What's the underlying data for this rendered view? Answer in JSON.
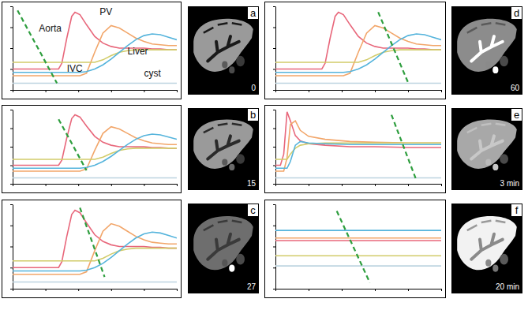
{
  "chart_data": [
    {
      "type": "line",
      "annotations": [
        "a",
        "0"
      ],
      "tick_labels": false,
      "grid": false,
      "x": [
        0,
        10,
        20,
        28,
        30,
        33,
        36,
        38,
        41,
        45,
        50,
        55,
        60,
        65,
        70,
        75,
        80,
        85,
        90,
        95,
        100
      ],
      "xlim": [
        0,
        100
      ],
      "ylim": [
        0,
        100
      ],
      "xticks": [
        0,
        20,
        40,
        60,
        80,
        100
      ],
      "yticks": [
        0,
        25,
        50,
        75,
        100
      ],
      "series": [
        {
          "name": "Aorta",
          "color": "#e8677b",
          "line_style": "solid",
          "values": [
            25,
            25,
            25,
            25,
            32,
            62,
            88,
            93,
            90,
            78,
            64,
            56,
            52,
            50,
            50,
            50,
            50,
            49,
            49,
            48,
            48
          ]
        },
        {
          "name": "PV",
          "color": "#f2a66a",
          "line_style": "solid",
          "values": [
            17,
            17,
            17,
            17,
            17,
            17,
            17,
            17,
            17,
            20,
            45,
            68,
            77,
            74,
            68,
            62,
            58,
            55,
            54,
            53,
            53
          ]
        },
        {
          "name": "IVC",
          "color": "#d2cc6a",
          "line_style": "solid",
          "values": [
            33,
            33,
            33,
            33,
            33,
            33,
            33,
            33,
            33,
            33,
            33,
            36,
            41,
            45,
            47,
            48,
            48,
            48,
            48,
            48,
            48
          ]
        },
        {
          "name": "Liver",
          "color": "#55b4dc",
          "line_style": "solid",
          "values": [
            21,
            21,
            21,
            21,
            21,
            21,
            21,
            21,
            21,
            22,
            25,
            30,
            37,
            45,
            53,
            60,
            65,
            67,
            66,
            63,
            60
          ]
        },
        {
          "name": "cyst",
          "color": "#bcd4e0",
          "line_style": "solid",
          "values": [
            8,
            8,
            8,
            8,
            8,
            8,
            8,
            8,
            8,
            8,
            8,
            8,
            8,
            8,
            8,
            8,
            8,
            8,
            8,
            8,
            8
          ]
        },
        {
          "color": "#2e9e3e",
          "line_style": "dashed",
          "x": [
            3,
            27
          ],
          "values": [
            95,
            8
          ]
        }
      ]
    },
    {
      "type": "line",
      "annotations": [
        "b",
        "15"
      ],
      "tick_labels": false,
      "grid": false,
      "x": [
        0,
        10,
        20,
        28,
        30,
        33,
        36,
        38,
        41,
        45,
        50,
        55,
        60,
        65,
        70,
        75,
        80,
        85,
        90,
        95,
        100
      ],
      "xlim": [
        0,
        100
      ],
      "ylim": [
        0,
        100
      ],
      "xticks": [
        0,
        20,
        40,
        60,
        80,
        100
      ],
      "yticks": [
        0,
        25,
        50,
        75,
        100
      ],
      "series": [
        {
          "color": "#e8677b",
          "line_style": "solid",
          "values": [
            25,
            25,
            25,
            25,
            32,
            62,
            88,
            93,
            90,
            78,
            64,
            56,
            52,
            50,
            50,
            50,
            50,
            49,
            49,
            48,
            48
          ]
        },
        {
          "color": "#f2a66a",
          "line_style": "solid",
          "values": [
            17,
            17,
            17,
            17,
            17,
            17,
            17,
            17,
            17,
            20,
            45,
            68,
            77,
            74,
            68,
            62,
            58,
            55,
            54,
            53,
            53
          ]
        },
        {
          "color": "#d2cc6a",
          "line_style": "solid",
          "values": [
            33,
            33,
            33,
            33,
            33,
            33,
            33,
            33,
            33,
            33,
            33,
            36,
            41,
            45,
            47,
            48,
            48,
            48,
            48,
            48,
            48
          ]
        },
        {
          "color": "#55b4dc",
          "line_style": "solid",
          "values": [
            21,
            21,
            21,
            21,
            21,
            21,
            21,
            21,
            21,
            22,
            25,
            30,
            37,
            45,
            53,
            60,
            65,
            67,
            66,
            63,
            60
          ]
        },
        {
          "color": "#bcd4e0",
          "line_style": "solid",
          "values": [
            8,
            8,
            8,
            8,
            8,
            8,
            8,
            8,
            8,
            8,
            8,
            8,
            8,
            8,
            8,
            8,
            8,
            8,
            8,
            8,
            8
          ]
        },
        {
          "color": "#2e9e3e",
          "line_style": "dashed",
          "x": [
            28,
            45
          ],
          "values": [
            87,
            18
          ]
        }
      ]
    },
    {
      "type": "line",
      "annotations": [
        "c",
        "27"
      ],
      "tick_labels": false,
      "grid": false,
      "x": [
        0,
        10,
        20,
        28,
        30,
        33,
        36,
        38,
        41,
        45,
        50,
        55,
        60,
        65,
        70,
        75,
        80,
        85,
        90,
        95,
        100
      ],
      "xlim": [
        0,
        100
      ],
      "ylim": [
        0,
        100
      ],
      "xticks": [
        0,
        20,
        40,
        60,
        80,
        100
      ],
      "yticks": [
        0,
        25,
        50,
        75,
        100
      ],
      "series": [
        {
          "color": "#e8677b",
          "line_style": "solid",
          "values": [
            25,
            25,
            25,
            25,
            32,
            62,
            88,
            93,
            90,
            78,
            64,
            56,
            52,
            50,
            50,
            50,
            50,
            49,
            49,
            48,
            48
          ]
        },
        {
          "color": "#f2a66a",
          "line_style": "solid",
          "values": [
            17,
            17,
            17,
            17,
            17,
            17,
            17,
            17,
            17,
            20,
            45,
            68,
            77,
            74,
            68,
            62,
            58,
            55,
            54,
            53,
            53
          ]
        },
        {
          "color": "#d2cc6a",
          "line_style": "solid",
          "values": [
            33,
            33,
            33,
            33,
            33,
            33,
            33,
            33,
            33,
            33,
            33,
            36,
            41,
            45,
            47,
            48,
            48,
            48,
            48,
            48,
            48
          ]
        },
        {
          "color": "#55b4dc",
          "line_style": "solid",
          "values": [
            21,
            21,
            21,
            21,
            21,
            21,
            21,
            21,
            21,
            22,
            25,
            30,
            37,
            45,
            53,
            60,
            65,
            67,
            66,
            63,
            60
          ]
        },
        {
          "color": "#bcd4e0",
          "line_style": "solid",
          "values": [
            8,
            8,
            8,
            8,
            8,
            8,
            8,
            8,
            8,
            8,
            8,
            8,
            8,
            8,
            8,
            8,
            8,
            8,
            8,
            8,
            8
          ]
        },
        {
          "color": "#2e9e3e",
          "line_style": "dashed",
          "x": [
            41,
            56
          ],
          "values": [
            96,
            14
          ]
        }
      ]
    },
    {
      "type": "line",
      "annotations": [
        "d",
        "60"
      ],
      "tick_labels": false,
      "grid": false,
      "x": [
        0,
        10,
        20,
        28,
        30,
        33,
        36,
        38,
        41,
        45,
        50,
        55,
        60,
        65,
        70,
        75,
        80,
        85,
        90,
        95,
        100
      ],
      "xlim": [
        0,
        100
      ],
      "ylim": [
        0,
        100
      ],
      "xticks": [
        0,
        20,
        40,
        60,
        80,
        100
      ],
      "yticks": [
        0,
        25,
        50,
        75,
        100
      ],
      "series": [
        {
          "color": "#e8677b",
          "line_style": "solid",
          "values": [
            25,
            25,
            25,
            25,
            32,
            62,
            88,
            93,
            90,
            78,
            64,
            56,
            52,
            50,
            50,
            50,
            50,
            49,
            49,
            48,
            48
          ]
        },
        {
          "color": "#f2a66a",
          "line_style": "solid",
          "values": [
            17,
            17,
            17,
            17,
            17,
            17,
            17,
            17,
            17,
            20,
            45,
            68,
            77,
            74,
            68,
            62,
            58,
            55,
            54,
            53,
            53
          ]
        },
        {
          "color": "#d2cc6a",
          "line_style": "solid",
          "values": [
            33,
            33,
            33,
            33,
            33,
            33,
            33,
            33,
            33,
            33,
            33,
            36,
            41,
            45,
            47,
            48,
            48,
            48,
            48,
            48,
            48
          ]
        },
        {
          "color": "#55b4dc",
          "line_style": "solid",
          "values": [
            21,
            21,
            21,
            21,
            21,
            21,
            21,
            21,
            21,
            22,
            25,
            30,
            37,
            45,
            53,
            60,
            65,
            67,
            66,
            63,
            60
          ]
        },
        {
          "color": "#bcd4e0",
          "line_style": "solid",
          "values": [
            8,
            8,
            8,
            8,
            8,
            8,
            8,
            8,
            8,
            8,
            8,
            8,
            8,
            8,
            8,
            8,
            8,
            8,
            8,
            8,
            8
          ]
        },
        {
          "color": "#2e9e3e",
          "line_style": "dashed",
          "x": [
            62,
            80
          ],
          "values": [
            93,
            9
          ]
        }
      ]
    },
    {
      "type": "line",
      "annotations": [
        "e",
        "3 min"
      ],
      "tick_labels": false,
      "grid": false,
      "x": [
        0,
        3,
        5,
        7,
        9,
        12,
        15,
        20,
        30,
        45,
        60,
        80,
        100
      ],
      "xlim": [
        0,
        100
      ],
      "ylim": [
        0,
        100
      ],
      "xticks": [
        0,
        20,
        40,
        60,
        80,
        100
      ],
      "yticks": [
        0,
        25,
        50,
        75,
        100
      ],
      "series": [
        {
          "color": "#e8677b",
          "line_style": "solid",
          "values": [
            25,
            25,
            40,
            97,
            85,
            65,
            58,
            54,
            52,
            50,
            50,
            49,
            49
          ]
        },
        {
          "color": "#f2a66a",
          "line_style": "solid",
          "values": [
            17,
            17,
            17,
            35,
            80,
            85,
            72,
            64,
            60,
            57,
            56,
            55,
            55
          ]
        },
        {
          "color": "#d2cc6a",
          "line_style": "solid",
          "values": [
            33,
            33,
            33,
            33,
            40,
            48,
            52,
            54,
            55,
            55,
            55,
            55,
            55
          ]
        },
        {
          "color": "#55b4dc",
          "line_style": "solid",
          "values": [
            21,
            21,
            21,
            21,
            30,
            52,
            57,
            55,
            54,
            53,
            53,
            53,
            53
          ]
        },
        {
          "color": "#bcd4e0",
          "line_style": "solid",
          "values": [
            8,
            8,
            8,
            8,
            8,
            8,
            8,
            8,
            8,
            8,
            8,
            8,
            8
          ]
        },
        {
          "color": "#2e9e3e",
          "line_style": "dashed",
          "x": [
            70,
            85
          ],
          "values": [
            93,
            5
          ]
        }
      ]
    },
    {
      "type": "line",
      "annotations": [
        "f",
        "20 min"
      ],
      "tick_labels": false,
      "grid": false,
      "x": [
        0,
        100
      ],
      "xlim": [
        0,
        100
      ],
      "ylim": [
        0,
        100
      ],
      "xticks": [
        0,
        20,
        40,
        60,
        80,
        100
      ],
      "yticks": [
        0,
        25,
        50,
        75,
        100
      ],
      "series": [
        {
          "color": "#e8677b",
          "line_style": "solid",
          "values": [
            57,
            57
          ]
        },
        {
          "color": "#f2a66a",
          "line_style": "solid",
          "values": [
            60,
            60
          ]
        },
        {
          "color": "#d2cc6a",
          "line_style": "solid",
          "values": [
            39,
            39
          ]
        },
        {
          "color": "#55b4dc",
          "line_style": "solid",
          "values": [
            69,
            69
          ]
        },
        {
          "color": "#bcd4e0",
          "line_style": "solid",
          "values": [
            27,
            27
          ]
        },
        {
          "color": "#2e9e3e",
          "line_style": "dashed",
          "x": [
            37,
            57
          ],
          "values": [
            92,
            7
          ]
        }
      ]
    }
  ]
}
